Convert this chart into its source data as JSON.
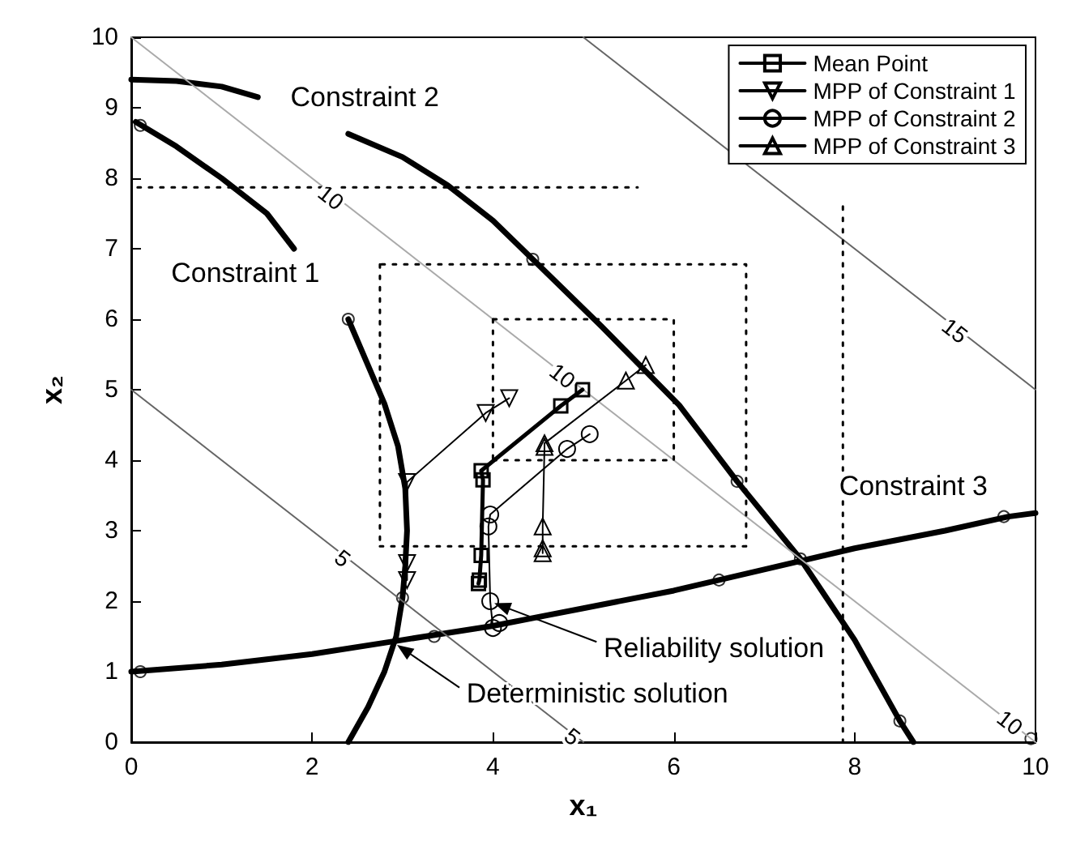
{
  "chart_data": {
    "type": "line",
    "xlabel": "x₁",
    "ylabel": "x₂",
    "xlim": [
      0,
      10
    ],
    "ylim": [
      0,
      10
    ],
    "xticks": [
      0,
      2,
      4,
      6,
      8,
      10
    ],
    "yticks": [
      0,
      1,
      2,
      3,
      4,
      5,
      6,
      7,
      8,
      9,
      10
    ],
    "grid": false,
    "legend": "top right",
    "marker": "none",
    "line_style": "solid",
    "series": [
      {
        "color": "#000000",
        "x": [
          0.05,
          0.5,
          1.0,
          1.5,
          1.8
        ],
        "values": [
          8.8,
          8.45,
          8.0,
          7.5,
          7.0
        ]
      },
      {
        "color": "#000000",
        "x": [
          2.4,
          2.6,
          2.8,
          2.95,
          3.03,
          3.05,
          3.03,
          3.0,
          2.93,
          2.8,
          2.62,
          2.4
        ],
        "values": [
          6.0,
          5.4,
          4.8,
          4.2,
          3.6,
          3.0,
          2.5,
          2.05,
          1.5,
          1.0,
          0.5,
          0.0
        ]
      },
      {
        "color": "#000000",
        "x": [
          0,
          0.5,
          1.0,
          1.4
        ],
        "values": [
          9.4,
          9.38,
          9.3,
          9.15
        ]
      },
      {
        "color": "#000000",
        "x": [
          2.4,
          3.0,
          3.5,
          4.0,
          4.44,
          5.2,
          6.06,
          6.7,
          7.4,
          8.0,
          8.5,
          8.65
        ],
        "values": [
          8.63,
          8.3,
          7.9,
          7.4,
          6.85,
          5.9,
          4.78,
          3.7,
          2.6,
          1.45,
          0.3,
          0.0
        ]
      },
      {
        "color": "#000000",
        "x": [
          0,
          1,
          2,
          3,
          4,
          5,
          6,
          7,
          8,
          9,
          9.7,
          10
        ],
        "values": [
          1.0,
          1.1,
          1.25,
          1.45,
          1.65,
          1.9,
          2.15,
          2.45,
          2.75,
          3.0,
          3.2,
          3.25
        ]
      },
      {
        "color": "#666666",
        "x": [
          0,
          5
        ],
        "values": [
          5,
          0
        ]
      },
      {
        "color": "#aaaaaa",
        "x": [
          0,
          10
        ],
        "values": [
          10,
          0
        ]
      },
      {
        "color": "#666666",
        "x": [
          5,
          10
        ],
        "values": [
          10,
          5
        ]
      },
      {
        "color": "#000000",
        "line_style": "dotted",
        "x": [
          0.07,
          5.6
        ],
        "values": [
          7.87,
          7.87
        ]
      },
      {
        "color": "#000000",
        "line_style": "dotted",
        "x": [
          7.87,
          7.87
        ],
        "values": [
          7.6,
          0
        ]
      },
      {
        "color": "#000000",
        "line_style": "dotted",
        "x": [
          2.75,
          6.8,
          6.8,
          2.75
        ],
        "values": [
          2.78,
          2.78,
          6.78,
          6.78
        ]
      },
      {
        "color": "#000000",
        "line_style": "dotted",
        "x": [
          2.75,
          2.75
        ],
        "values": [
          6.78,
          2.78
        ]
      },
      {
        "color": "#000000",
        "line_style": "dotted",
        "x": [
          4,
          6,
          6,
          4
        ],
        "values": [
          4,
          4,
          6,
          6
        ]
      },
      {
        "color": "#000000",
        "line_style": "dotted",
        "x": [
          4,
          4
        ],
        "values": [
          6,
          4
        ]
      },
      {
        "name": "Mean Point",
        "color": "#000000",
        "marker": "square",
        "x": [
          3.84,
          3.85,
          3.87,
          3.89,
          3.87,
          4.75,
          4.99
        ],
        "values": [
          2.25,
          2.3,
          2.65,
          3.72,
          3.85,
          4.77,
          5.0
        ]
      },
      {
        "name": "MPP of Constraint 1",
        "color": "#000000",
        "marker": "triangle_down",
        "x": [
          3.05,
          3.05,
          3.05,
          3.92,
          4.18
        ],
        "values": [
          2.3,
          2.54,
          3.69,
          4.67,
          4.88
        ]
      },
      {
        "name": "MPP of Constraint 2",
        "color": "#000000",
        "marker": "circle",
        "x": [
          4.07,
          4.0,
          3.97,
          3.95,
          3.97,
          4.82,
          5.07
        ],
        "values": [
          1.69,
          1.62,
          2.0,
          3.06,
          3.23,
          4.16,
          4.37
        ]
      },
      {
        "name": "MPP of Constraint 3",
        "color": "#000000",
        "marker": "triangle",
        "x": [
          4.55,
          4.55,
          4.55,
          4.57,
          4.57,
          5.47,
          5.69
        ],
        "values": [
          2.68,
          2.75,
          3.06,
          4.19,
          4.24,
          5.13,
          5.35
        ]
      },
      {
        "type": "scatter",
        "color": "#000000",
        "marker": "circle",
        "x": [
          0.1,
          2.4,
          4.44,
          6.7,
          7.4,
          8.5,
          0.1,
          3.35,
          6.5,
          9.65,
          3.0,
          9.95
        ],
        "values": [
          8.75,
          6.0,
          6.85,
          3.7,
          2.6,
          0.3,
          1.0,
          1.5,
          2.3,
          3.2,
          2.05,
          0.05
        ]
      }
    ],
    "annotations": [
      {
        "text": "Constraint 1",
        "x": 1.8,
        "y": 7.0
      },
      {
        "text": "Constraint 2",
        "x": 1.4,
        "y": 9.15
      },
      {
        "text": "Constraint 3",
        "x": 8.65,
        "y": 2.9
      },
      {
        "text": "Reliability solution",
        "x": 3.97,
        "y": 2.0
      },
      {
        "text": "Deterministic solution",
        "x": 2.9,
        "y": 1.42
      },
      {
        "text": "5",
        "x": 2.34,
        "y": 2.61
      },
      {
        "text": "5",
        "x": 4.88,
        "y": 0.08
      },
      {
        "text": "10",
        "x": 2.21,
        "y": 7.73
      },
      {
        "text": "10",
        "x": 4.77,
        "y": 5.2
      },
      {
        "text": "10",
        "x": 9.72,
        "y": 0.28
      },
      {
        "text": "15",
        "x": 9.11,
        "y": 5.84
      }
    ]
  }
}
